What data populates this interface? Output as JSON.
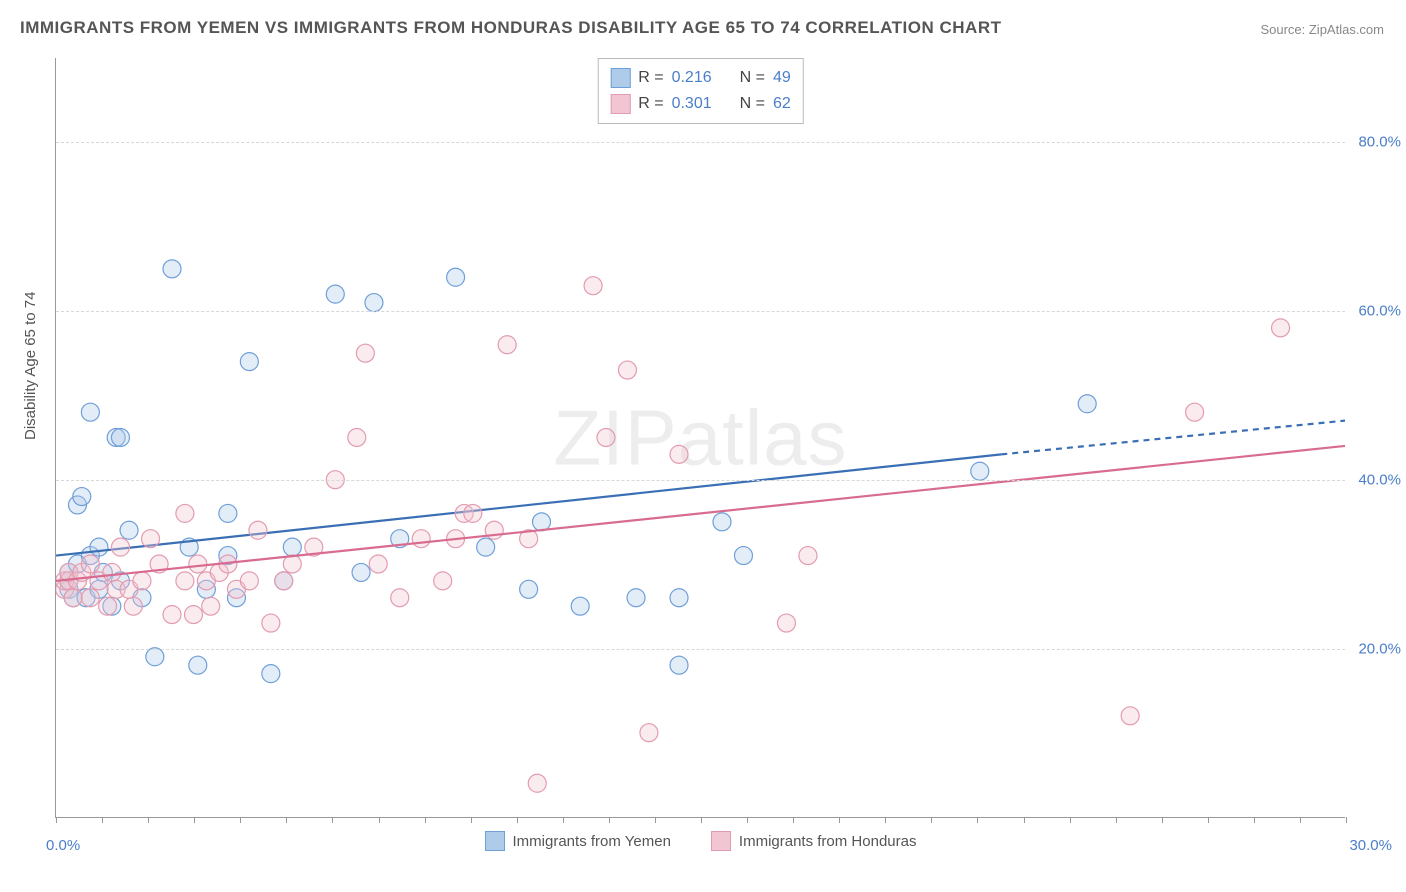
{
  "title": "IMMIGRANTS FROM YEMEN VS IMMIGRANTS FROM HONDURAS DISABILITY AGE 65 TO 74 CORRELATION CHART",
  "source_label": "Source: ",
  "source_name": "ZipAtlas.com",
  "y_axis_label": "Disability Age 65 to 74",
  "watermark_a": "ZIP",
  "watermark_b": "atlas",
  "chart": {
    "type": "scatter",
    "xlim": [
      0,
      30
    ],
    "ylim": [
      0,
      90
    ],
    "x_ticks": [
      0,
      30
    ],
    "x_tick_labels": [
      "0.0%",
      "30.0%"
    ],
    "x_minor_count": 28,
    "y_gridlines": [
      20,
      40,
      60,
      80
    ],
    "y_tick_labels": [
      "20.0%",
      "40.0%",
      "60.0%",
      "80.0%"
    ],
    "background_color": "#ffffff",
    "grid_color": "#d8d8d8",
    "axis_color": "#999999",
    "tick_label_color": "#4a7ec9",
    "title_fontsize": 17,
    "label_fontsize": 15,
    "marker_radius": 9,
    "marker_stroke_width": 1.2,
    "marker_fill_opacity": 0.35,
    "trend_line_width": 2.2,
    "trend_dash": "6,5"
  },
  "series": [
    {
      "key": "yemen",
      "label": "Immigrants from Yemen",
      "color_stroke": "#6f9fd8",
      "color_fill": "#aeccea",
      "line_color": "#3b6fb5",
      "R_label": "R = ",
      "R": "0.216",
      "N_label": "N = ",
      "N": "49",
      "trend": {
        "x1": 0,
        "y1": 31,
        "x2": 22,
        "y2": 43,
        "x2_dash": 30,
        "y2_dash": 47
      },
      "points": [
        [
          0.3,
          27
        ],
        [
          0.3,
          28
        ],
        [
          0.3,
          29
        ],
        [
          0.4,
          26
        ],
        [
          0.5,
          30
        ],
        [
          0.5,
          37
        ],
        [
          0.6,
          38
        ],
        [
          0.7,
          26
        ],
        [
          0.8,
          31
        ],
        [
          0.8,
          48
        ],
        [
          1.0,
          27
        ],
        [
          1.0,
          32
        ],
        [
          1.1,
          29
        ],
        [
          1.3,
          25
        ],
        [
          1.4,
          45
        ],
        [
          1.5,
          45
        ],
        [
          1.5,
          28
        ],
        [
          1.7,
          34
        ],
        [
          2.0,
          26
        ],
        [
          2.3,
          19
        ],
        [
          2.7,
          65
        ],
        [
          3.1,
          32
        ],
        [
          3.3,
          18
        ],
        [
          3.5,
          27
        ],
        [
          4.0,
          31
        ],
        [
          4.0,
          36
        ],
        [
          4.2,
          26
        ],
        [
          4.5,
          54
        ],
        [
          5.0,
          17
        ],
        [
          5.3,
          28
        ],
        [
          5.5,
          32
        ],
        [
          6.5,
          62
        ],
        [
          7.1,
          29
        ],
        [
          7.4,
          61
        ],
        [
          8.0,
          33
        ],
        [
          9.3,
          64
        ],
        [
          10.0,
          32
        ],
        [
          11.0,
          27
        ],
        [
          11.3,
          35
        ],
        [
          12.2,
          25
        ],
        [
          13.5,
          26
        ],
        [
          14.5,
          26
        ],
        [
          14.5,
          18
        ],
        [
          15.5,
          35
        ],
        [
          16.0,
          31
        ],
        [
          21.5,
          41
        ],
        [
          24.0,
          49
        ]
      ]
    },
    {
      "key": "honduras",
      "label": "Immigrants from Honduras",
      "color_stroke": "#e39bb0",
      "color_fill": "#f2c5d2",
      "line_color": "#d86b8f",
      "R_label": "R = ",
      "R": "0.301",
      "N_label": "N = ",
      "N": "62",
      "trend": {
        "x1": 0,
        "y1": 28,
        "x2": 30,
        "y2": 44,
        "x2_dash": 30,
        "y2_dash": 44
      },
      "points": [
        [
          0.2,
          27
        ],
        [
          0.2,
          28
        ],
        [
          0.3,
          28
        ],
        [
          0.3,
          29
        ],
        [
          0.4,
          26
        ],
        [
          0.5,
          28
        ],
        [
          0.6,
          29
        ],
        [
          0.8,
          30
        ],
        [
          0.8,
          26
        ],
        [
          1.0,
          28
        ],
        [
          1.2,
          25
        ],
        [
          1.3,
          29
        ],
        [
          1.4,
          27
        ],
        [
          1.5,
          32
        ],
        [
          1.7,
          27
        ],
        [
          1.8,
          25
        ],
        [
          2.0,
          28
        ],
        [
          2.2,
          33
        ],
        [
          2.4,
          30
        ],
        [
          2.7,
          24
        ],
        [
          3.0,
          36
        ],
        [
          3.0,
          28
        ],
        [
          3.2,
          24
        ],
        [
          3.3,
          30
        ],
        [
          3.5,
          28
        ],
        [
          3.6,
          25
        ],
        [
          3.8,
          29
        ],
        [
          4.0,
          30
        ],
        [
          4.2,
          27
        ],
        [
          4.5,
          28
        ],
        [
          4.7,
          34
        ],
        [
          5.0,
          23
        ],
        [
          5.3,
          28
        ],
        [
          5.5,
          30
        ],
        [
          6.0,
          32
        ],
        [
          6.5,
          40
        ],
        [
          7.0,
          45
        ],
        [
          7.2,
          55
        ],
        [
          7.5,
          30
        ],
        [
          8.0,
          26
        ],
        [
          8.5,
          33
        ],
        [
          9.0,
          28
        ],
        [
          9.3,
          33
        ],
        [
          9.5,
          36
        ],
        [
          9.7,
          36
        ],
        [
          10.2,
          34
        ],
        [
          10.5,
          56
        ],
        [
          11.0,
          33
        ],
        [
          11.2,
          4
        ],
        [
          12.5,
          63
        ],
        [
          12.8,
          45
        ],
        [
          13.3,
          53
        ],
        [
          13.8,
          10
        ],
        [
          14.5,
          43
        ],
        [
          17.0,
          23
        ],
        [
          17.5,
          31
        ],
        [
          25.0,
          12
        ],
        [
          26.5,
          48
        ],
        [
          28.5,
          58
        ]
      ]
    }
  ],
  "bottom_legend": [
    {
      "series": "yemen"
    },
    {
      "series": "honduras"
    }
  ]
}
